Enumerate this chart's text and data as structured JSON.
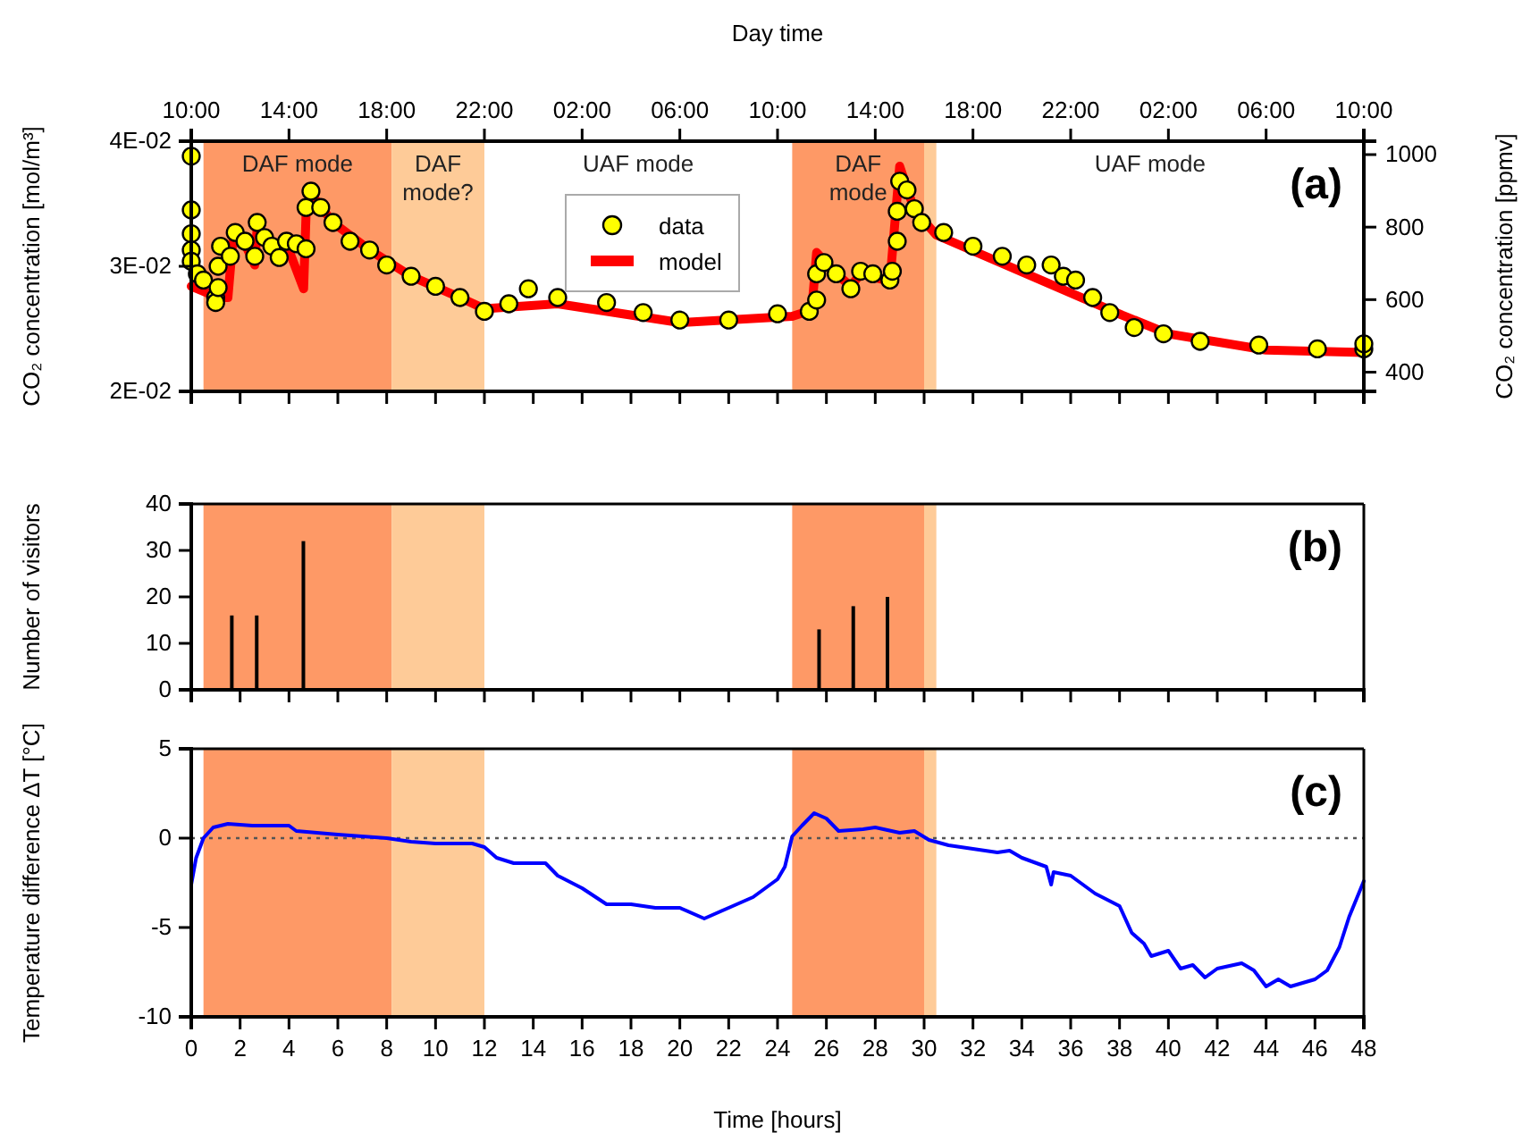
{
  "chart_data": [
    {
      "type": "scatter",
      "title": "(a)",
      "ylabel": "CO₂ concentration [mol/m³]",
      "y2label": "CO₂ concentration [ppmv]",
      "x2label": "Day time",
      "xlim": [
        0,
        48
      ],
      "xticks": [
        0,
        2,
        4,
        6,
        8,
        10,
        12,
        14,
        16,
        18,
        20,
        22,
        24,
        26,
        28,
        30,
        32,
        34,
        36,
        38,
        40,
        42,
        44,
        46,
        48
      ],
      "tick_labels": "y",
      "x2lim": [
        "2000-01-01T10:00",
        "2000-01-03T10:00"
      ],
      "x2ticks": [
        {
          "value": "2000-01-01T10:00",
          "label": "10:00"
        },
        {
          "value": "2000-01-01T14:00",
          "label": "14:00"
        },
        {
          "value": "2000-01-01T18:00",
          "label": "18:00"
        },
        {
          "value": "2000-01-01T22:00",
          "label": "22:00"
        },
        {
          "value": "2000-01-02T02:00",
          "label": "02:00"
        },
        {
          "value": "2000-01-02T06:00",
          "label": "06:00"
        },
        {
          "value": "2000-01-02T10:00",
          "label": "10:00"
        },
        {
          "value": "2000-01-02T14:00",
          "label": "14:00"
        },
        {
          "value": "2000-01-02T18:00",
          "label": "18:00"
        },
        {
          "value": "2000-01-02T22:00",
          "label": "22:00"
        },
        {
          "value": "2000-01-03T02:00",
          "label": "02:00"
        },
        {
          "value": "2000-01-03T06:00",
          "label": "06:00"
        },
        {
          "value": "2000-01-03T10:00",
          "label": "10:00"
        }
      ],
      "ylim": [
        0.02,
        0.04
      ],
      "yticks": [
        {
          "value": 0.02,
          "label": "2E-02"
        },
        {
          "value": 0.03,
          "label": "3E-02"
        },
        {
          "value": 0.04,
          "label": "4E-02"
        }
      ],
      "y2lim": [
        347,
        1037
      ],
      "y2ticks": [
        400,
        600,
        800,
        1000
      ],
      "legend": "top",
      "bands": [
        {
          "axis": "x",
          "from": 0.5,
          "to": 8.2,
          "label": "DAF mode",
          "color": "#fe9966"
        },
        {
          "axis": "x",
          "from": 8.2,
          "to": 12,
          "label": "DAF mode?",
          "color": "#fecb98"
        },
        {
          "axis": "x",
          "from": 24.6,
          "to": 30,
          "label": "DAF mode",
          "color": "#fe9966"
        },
        {
          "axis": "x",
          "from": 30,
          "to": 30.5,
          "color": "#fecb98"
        }
      ],
      "annotations": [
        "UAF mode",
        "UAF mode"
      ],
      "series": [
        {
          "name": "data",
          "type": "scatter",
          "marker": "circle",
          "color": "#ffff00",
          "x": [
            0,
            0,
            0,
            0,
            0,
            0.25,
            0.5,
            1.0,
            1.0,
            1.1,
            1.1,
            1.2,
            1.6,
            1.8,
            2.2,
            2.6,
            2.7,
            3.0,
            3.3,
            3.6,
            3.9,
            4.3,
            4.7,
            4.7,
            4.9,
            5.3,
            5.8,
            6.5,
            7.3,
            8.0,
            9.0,
            10.0,
            11.0,
            12.0,
            13.0,
            13.8,
            15,
            17,
            18.5,
            20,
            22,
            24.0,
            25.3,
            25.6,
            25.6,
            25.9,
            26.4,
            27.0,
            27.4,
            27.9,
            28.6,
            28.7,
            28.9,
            28.9,
            29.0,
            29.3,
            29.6,
            29.9,
            30.8,
            32.0,
            33.2,
            34.2,
            35.2,
            35.7,
            36.2,
            36.9,
            37.6,
            38.6,
            39.8,
            41.3,
            43.7,
            46.1,
            48,
            48
          ],
          "values": [
            0.0388,
            0.0345,
            0.0326,
            0.0313,
            0.0304,
            0.0294,
            0.0289,
            0.0275,
            0.0271,
            0.03,
            0.0283,
            0.0316,
            0.0308,
            0.0327,
            0.032,
            0.0308,
            0.0335,
            0.0323,
            0.0316,
            0.0307,
            0.032,
            0.0318,
            0.0314,
            0.0347,
            0.036,
            0.0347,
            0.0335,
            0.032,
            0.0313,
            0.0301,
            0.0292,
            0.0284,
            0.0275,
            0.0264,
            0.027,
            0.0282,
            0.0275,
            0.0271,
            0.0263,
            0.0257,
            0.0257,
            0.0262,
            0.0264,
            0.0273,
            0.0294,
            0.0303,
            0.0294,
            0.0282,
            0.0296,
            0.0294,
            0.0289,
            0.0296,
            0.032,
            0.0344,
            0.0368,
            0.0361,
            0.0346,
            0.0335,
            0.0327,
            0.0316,
            0.0308,
            0.0301,
            0.0301,
            0.0292,
            0.0289,
            0.0275,
            0.0263,
            0.0251,
            0.0246,
            0.024,
            0.0237,
            0.0234,
            0.0234,
            0.0238
          ]
        },
        {
          "name": "model",
          "type": "line",
          "color": "#ff0000",
          "x": [
            0,
            1.1,
            1.5,
            1.7,
            2.2,
            2.6,
            2.7,
            3.6,
            3.8,
            4.6,
            4.7,
            4.9,
            5.8,
            7.3,
            9.0,
            11.0,
            12.0,
            15,
            20,
            24.6,
            25.4,
            25.6,
            26.4,
            27.0,
            27.4,
            28.6,
            29.0,
            29.6,
            30.5,
            38.1,
            40,
            44,
            48
          ],
          "values": [
            0.0284,
            0.0275,
            0.0275,
            0.032,
            0.0318,
            0.0301,
            0.0332,
            0.0304,
            0.0323,
            0.0282,
            0.0342,
            0.0358,
            0.0335,
            0.0313,
            0.0292,
            0.0275,
            0.0266,
            0.027,
            0.0255,
            0.026,
            0.0265,
            0.0311,
            0.0294,
            0.0284,
            0.0294,
            0.0288,
            0.038,
            0.0345,
            0.0325,
            0.0261,
            0.0246,
            0.0233,
            0.0231
          ]
        }
      ]
    },
    {
      "type": "bar",
      "title": "(b)",
      "ylabel": "Number of visitors",
      "xlim": [
        0,
        48
      ],
      "xticks": [
        0,
        2,
        4,
        6,
        8,
        10,
        12,
        14,
        16,
        18,
        20,
        22,
        24,
        26,
        28,
        30,
        32,
        34,
        36,
        38,
        40,
        42,
        44,
        46,
        48
      ],
      "tick_labels": "y",
      "ylim": [
        0,
        40
      ],
      "yticks": [
        0,
        10,
        20,
        30,
        40
      ],
      "bands": [
        {
          "axis": "x",
          "from": 0.5,
          "to": 8.2,
          "color": "#fe9966"
        },
        {
          "axis": "x",
          "from": 8.2,
          "to": 12,
          "color": "#fecb98"
        },
        {
          "axis": "x",
          "from": 24.6,
          "to": 30,
          "color": "#fe9966"
        },
        {
          "axis": "x",
          "from": 30,
          "to": 30.5,
          "color": "#fecb98"
        }
      ],
      "x": [
        1.66,
        2.68,
        4.59,
        25.7,
        27.1,
        28.5
      ],
      "values": [
        16,
        16,
        32,
        13,
        18,
        20
      ],
      "color": "#000000"
    },
    {
      "type": "line",
      "title": "(c)",
      "xlabel": "Time [hours]",
      "ylabel": "Temperature difference ΔT [°C]",
      "xlim": [
        0,
        48
      ],
      "xticks": [
        0,
        2,
        4,
        6,
        8,
        10,
        12,
        14,
        16,
        18,
        20,
        22,
        24,
        26,
        28,
        30,
        32,
        34,
        36,
        38,
        40,
        42,
        44,
        46,
        48
      ],
      "ylim": [
        -10,
        5
      ],
      "yticks": [
        -10,
        -5,
        0,
        5
      ],
      "bands": [
        {
          "axis": "x",
          "from": 0.5,
          "to": 8.2,
          "color": "#fe9966"
        },
        {
          "axis": "x",
          "from": 8.2,
          "to": 12,
          "color": "#fecb98"
        },
        {
          "axis": "x",
          "from": 24.6,
          "to": 30,
          "color": "#fe9966"
        },
        {
          "axis": "x",
          "from": 30,
          "to": 30.5,
          "color": "#fecb98"
        }
      ],
      "ref_lines": [
        {
          "axis": "y",
          "value": 0,
          "color": "#555555",
          "line_style": "dotted"
        }
      ],
      "color": "#0000ff",
      "x": [
        0,
        0.2,
        0.5,
        0.9,
        1.5,
        2.5,
        4.0,
        4.3,
        6,
        7,
        8,
        9,
        10,
        11.5,
        12,
        12.5,
        13.2,
        14.5,
        15,
        16,
        17,
        18,
        19,
        20,
        21,
        22,
        23,
        24,
        24.3,
        24.6,
        25.0,
        25.5,
        26.0,
        26.5,
        27.5,
        28,
        29,
        29.6,
        30.2,
        31,
        32,
        33,
        33.5,
        34,
        35,
        35.2,
        35.3,
        36,
        37,
        38,
        38.5,
        39,
        39.3,
        40,
        40.5,
        41,
        41.5,
        42,
        43,
        43.5,
        44,
        44.5,
        45,
        46,
        46.5,
        47,
        47.4,
        48
      ],
      "values": [
        -2.6,
        -1.1,
        0.0,
        0.6,
        0.8,
        0.7,
        0.7,
        0.4,
        0.2,
        0.1,
        0.0,
        -0.2,
        -0.3,
        -0.3,
        -0.5,
        -1.1,
        -1.4,
        -1.4,
        -2.1,
        -2.8,
        -3.7,
        -3.7,
        -3.9,
        -3.9,
        -4.5,
        -3.9,
        -3.3,
        -2.3,
        -1.6,
        0.1,
        0.7,
        1.4,
        1.1,
        0.4,
        0.5,
        0.6,
        0.3,
        0.4,
        -0.1,
        -0.4,
        -0.6,
        -0.8,
        -0.7,
        -1.1,
        -1.6,
        -2.6,
        -1.9,
        -2.1,
        -3.1,
        -3.8,
        -5.3,
        -5.9,
        -6.6,
        -6.3,
        -7.3,
        -7.1,
        -7.8,
        -7.3,
        -7.0,
        -7.4,
        -8.3,
        -7.9,
        -8.3,
        -7.9,
        -7.4,
        -6.1,
        -4.4,
        -2.4
      ]
    }
  ]
}
